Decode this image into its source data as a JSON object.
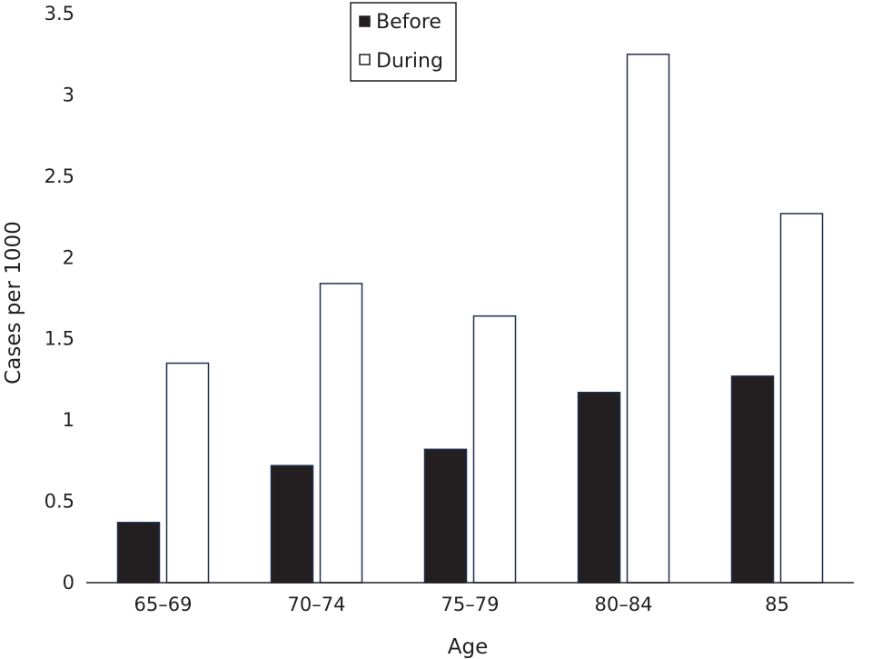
{
  "chart_data": {
    "type": "bar",
    "title": "",
    "xlabel": "Age",
    "ylabel": "Cases per 1000",
    "categories": [
      "65–69",
      "70–74",
      "75–79",
      "80–84",
      "85"
    ],
    "series": [
      {
        "name": "Before",
        "values": [
          0.37,
          0.72,
          0.82,
          1.17,
          1.27
        ],
        "color": "#231f20"
      },
      {
        "name": "During",
        "values": [
          1.35,
          1.84,
          1.64,
          3.25,
          2.27
        ],
        "color": "#ffffff"
      }
    ],
    "ylim": [
      0,
      3.5
    ],
    "yticks": [
      "0",
      "0.5",
      "1",
      "1.5",
      "2",
      "2.5",
      "3",
      "3.5"
    ],
    "grid": false,
    "legend_position": "top-center",
    "colors": {
      "bar_stroke": "#1f2f4d",
      "axis": "#231f20"
    }
  }
}
